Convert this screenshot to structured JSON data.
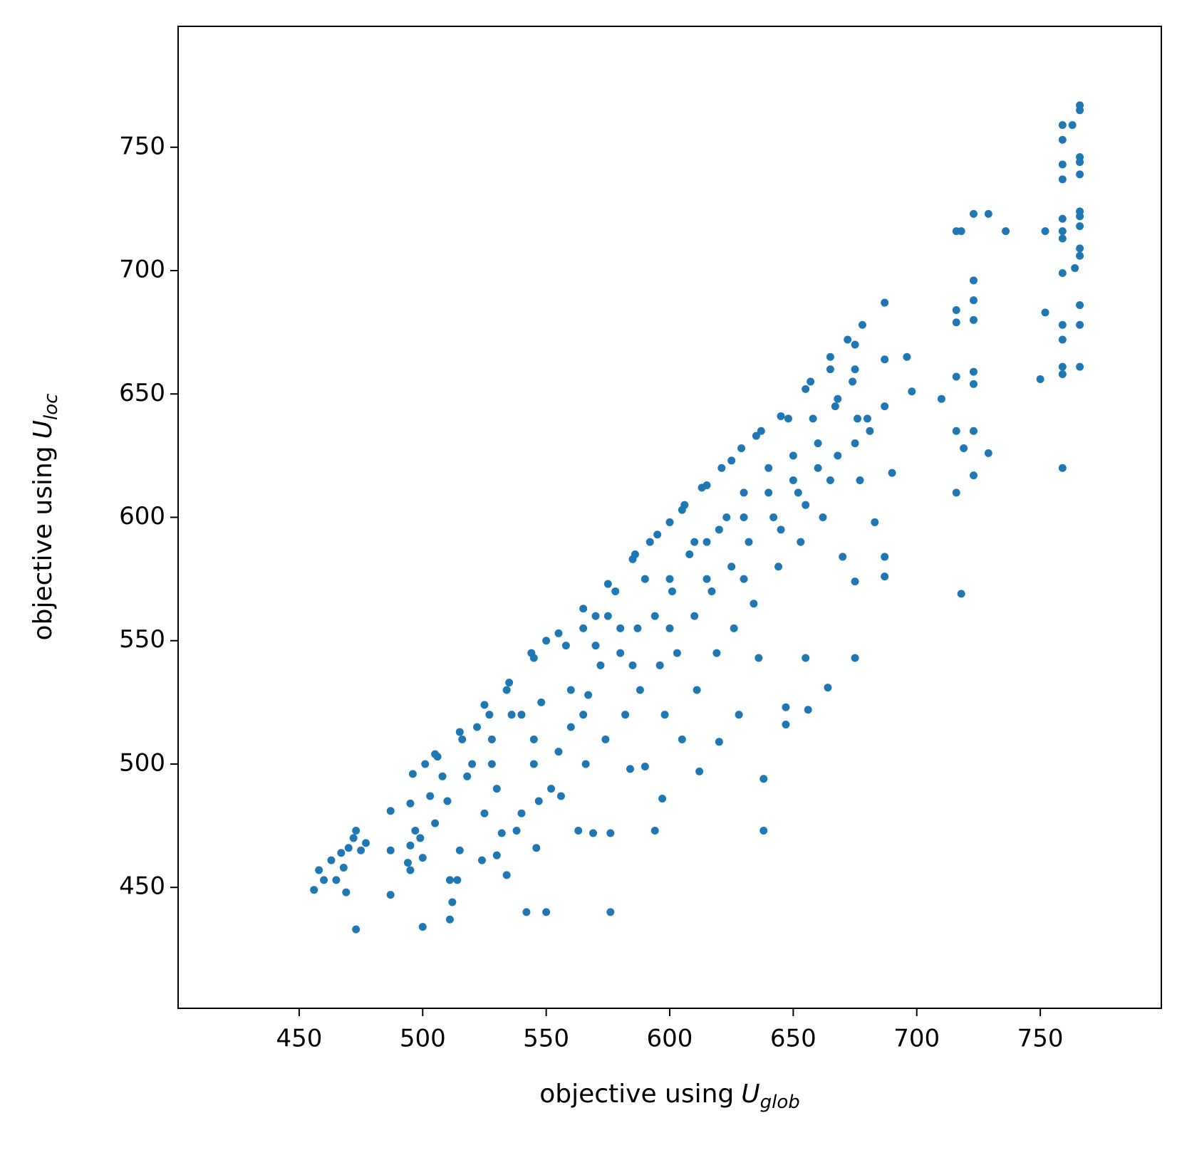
{
  "chart_data": {
    "type": "scatter",
    "xlabel": {
      "text": "objective using",
      "symbol": "U",
      "subscript": "glob"
    },
    "ylabel": {
      "text": "objective using",
      "symbol": "U",
      "subscript": "loc"
    },
    "xlim": [
      401,
      799
    ],
    "ylim": [
      401,
      799
    ],
    "xticks": [
      450,
      500,
      550,
      600,
      650,
      700,
      750
    ],
    "yticks": [
      450,
      500,
      550,
      600,
      650,
      700,
      750
    ],
    "color": "#1f77b4",
    "x": [
      456,
      458,
      460,
      463,
      465,
      467,
      468,
      469,
      470,
      472,
      473,
      473,
      475,
      477,
      487,
      487,
      487,
      494,
      495,
      495,
      495,
      496,
      497,
      499,
      500,
      500,
      501,
      503,
      505,
      506,
      508,
      510,
      511,
      511,
      512,
      514,
      515,
      516,
      520,
      522,
      524,
      525,
      527,
      528,
      530,
      532,
      534,
      534,
      536,
      538,
      540,
      542,
      544,
      545,
      546,
      547,
      550,
      550,
      552,
      555,
      556,
      558,
      560,
      563,
      565,
      566,
      567,
      569,
      570,
      572,
      574,
      576,
      576,
      578,
      580,
      582,
      584,
      586,
      587,
      588,
      590,
      592,
      594,
      594,
      596,
      597,
      598,
      600,
      601,
      603,
      605,
      606,
      608,
      610,
      611,
      612,
      613,
      615,
      617,
      619,
      620,
      621,
      623,
      625,
      626,
      628,
      629,
      630,
      632,
      634,
      636,
      637,
      638,
      638,
      640,
      642,
      644,
      647,
      647,
      648,
      650,
      652,
      653,
      655,
      656,
      657,
      658,
      660,
      662,
      664,
      665,
      667,
      668,
      670,
      672,
      674,
      675,
      675,
      676,
      677,
      678,
      681,
      683,
      687,
      687,
      687,
      687,
      687,
      690,
      696,
      698,
      710,
      716,
      716,
      716,
      716,
      716,
      716,
      718,
      718,
      719,
      723,
      723,
      723,
      723,
      723,
      723,
      723,
      723,
      729,
      729,
      736,
      750,
      752,
      752,
      759,
      759,
      759,
      759,
      759,
      759,
      759,
      759,
      759,
      759,
      759,
      759,
      759,
      763,
      764,
      766,
      766,
      766,
      766,
      766,
      766,
      766,
      766,
      766,
      766,
      766,
      766,
      766,
      505,
      515,
      525,
      535,
      545,
      555,
      565,
      575,
      585,
      595,
      605,
      615,
      625,
      635,
      645,
      655,
      665,
      675,
      540,
      560,
      580,
      600,
      620,
      640,
      660,
      575,
      590,
      610,
      630,
      650,
      570,
      548,
      528,
      518,
      530,
      545,
      565,
      585,
      600,
      615,
      630,
      645,
      655,
      665,
      675,
      680,
      675,
      668
    ],
    "values": [
      449,
      457,
      453,
      461,
      453,
      464,
      458,
      448,
      466,
      470,
      433,
      473,
      465,
      468,
      465,
      447,
      481,
      460,
      457,
      467,
      484,
      496,
      473,
      470,
      462,
      434,
      500,
      487,
      476,
      503,
      495,
      485,
      437,
      453,
      444,
      453,
      465,
      510,
      500,
      515,
      461,
      480,
      520,
      500,
      463,
      472,
      455,
      530,
      520,
      473,
      480,
      440,
      545,
      500,
      466,
      485,
      440,
      550,
      490,
      505,
      487,
      548,
      515,
      473,
      555,
      500,
      528,
      472,
      560,
      540,
      510,
      472,
      440,
      570,
      545,
      520,
      498,
      585,
      555,
      530,
      499,
      590,
      560,
      473,
      540,
      486,
      520,
      598,
      570,
      545,
      510,
      605,
      585,
      560,
      530,
      497,
      612,
      590,
      570,
      545,
      509,
      620,
      600,
      580,
      555,
      520,
      628,
      610,
      590,
      565,
      543,
      635,
      494,
      473,
      620,
      600,
      580,
      523,
      516,
      640,
      625,
      610,
      590,
      543,
      522,
      655,
      640,
      620,
      600,
      531,
      665,
      645,
      625,
      584,
      672,
      655,
      574,
      543,
      640,
      615,
      678,
      635,
      598,
      687,
      664,
      645,
      576,
      584,
      618,
      665,
      651,
      648,
      716,
      684,
      679,
      657,
      635,
      610,
      716,
      569,
      628,
      723,
      696,
      688,
      680,
      659,
      654,
      635,
      617,
      723,
      626,
      716,
      656,
      716,
      683,
      759,
      753,
      743,
      737,
      721,
      716,
      713,
      699,
      678,
      672,
      661,
      658,
      620,
      759,
      701,
      767,
      765,
      746,
      744,
      739,
      724,
      722,
      718,
      709,
      706,
      686,
      678,
      661,
      504,
      513,
      524,
      533,
      543,
      553,
      563,
      573,
      583,
      593,
      603,
      613,
      623,
      633,
      641,
      652,
      660,
      670,
      520,
      530,
      555,
      575,
      595,
      610,
      630,
      560,
      575,
      590,
      600,
      615,
      548,
      525,
      510,
      495,
      490,
      510,
      520,
      540,
      555,
      575,
      575,
      595,
      605,
      615,
      630,
      640,
      660,
      648
    ]
  }
}
